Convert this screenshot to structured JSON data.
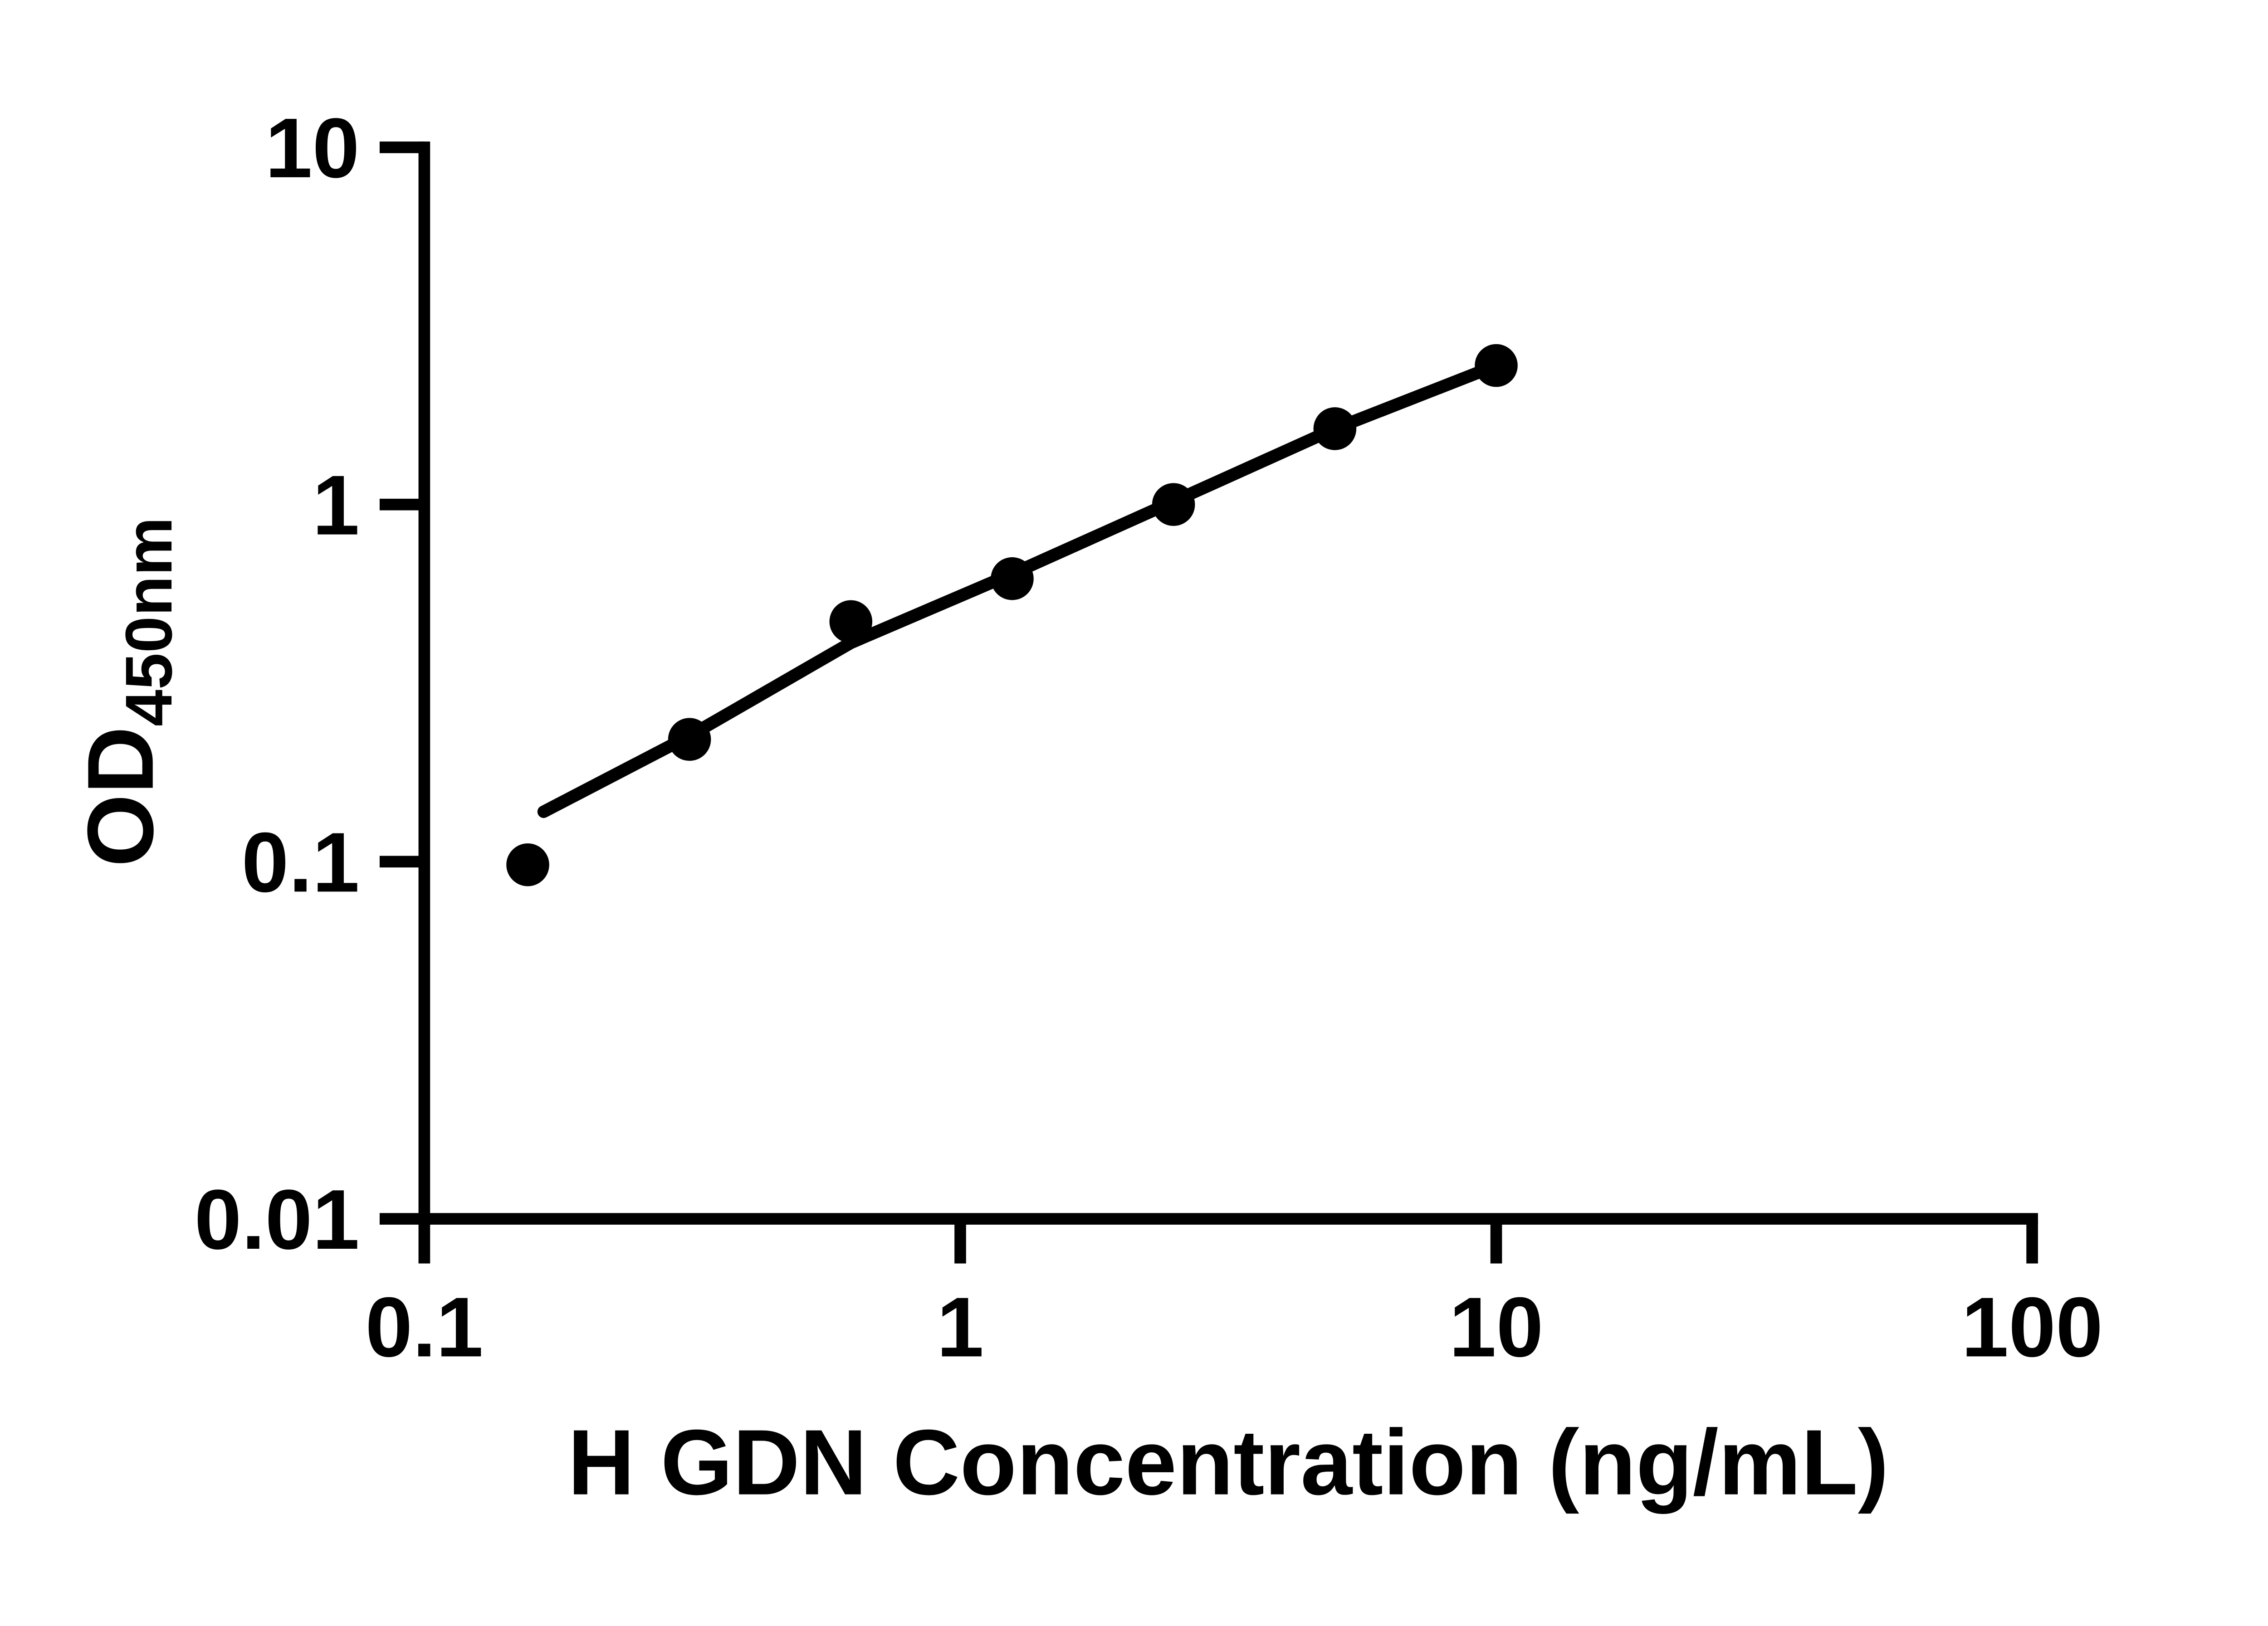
{
  "figure": {
    "background": "#ffffff",
    "foreground": "#000000"
  },
  "chart_data": {
    "type": "scatter",
    "title": "",
    "xlabel": "H GDN Concentration (ng/mL)",
    "ylabel": "OD",
    "ylabel_subscript": "450nm",
    "x_scale": "log10",
    "y_scale": "log10",
    "xlim": [
      0.1,
      100
    ],
    "ylim": [
      0.01,
      10
    ],
    "grid": false,
    "legend": false,
    "x_ticks": [
      {
        "value": 0.1,
        "label": "0.1"
      },
      {
        "value": 1,
        "label": "1"
      },
      {
        "value": 10,
        "label": "10"
      },
      {
        "value": 100,
        "label": "100"
      }
    ],
    "y_ticks": [
      {
        "value": 0.01,
        "label": "0.01"
      },
      {
        "value": 0.1,
        "label": "0.1"
      },
      {
        "value": 1,
        "label": "1"
      },
      {
        "value": 10,
        "label": "10"
      }
    ],
    "series": [
      {
        "name": "standard curve data points",
        "kind": "scatter",
        "marker": "filled-circle",
        "points": [
          {
            "x": 0.156,
            "y": 0.098
          },
          {
            "x": 0.3125,
            "y": 0.22
          },
          {
            "x": 0.625,
            "y": 0.47
          },
          {
            "x": 1.25,
            "y": 0.62
          },
          {
            "x": 2.5,
            "y": 1.0
          },
          {
            "x": 5,
            "y": 1.63
          },
          {
            "x": 10,
            "y": 2.45
          }
        ]
      },
      {
        "name": "fitted standard curve",
        "kind": "line",
        "points": [
          {
            "x": 0.167,
            "y": 0.138
          },
          {
            "x": 0.3125,
            "y": 0.225
          },
          {
            "x": 0.625,
            "y": 0.41
          },
          {
            "x": 1.25,
            "y": 0.64
          },
          {
            "x": 2.5,
            "y": 1.02
          },
          {
            "x": 5,
            "y": 1.63
          },
          {
            "x": 10,
            "y": 2.45
          }
        ]
      }
    ]
  }
}
